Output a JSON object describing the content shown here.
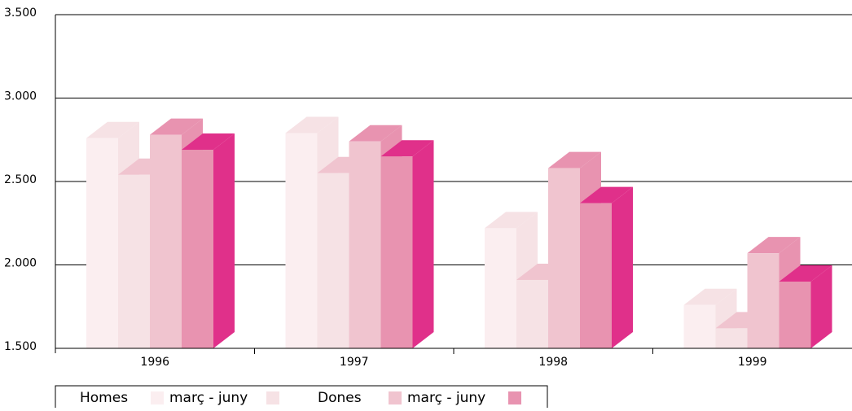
{
  "chart_data": {
    "type": "bar3d",
    "categories": [
      "1996",
      "1997",
      "1998",
      "1999"
    ],
    "series": [
      {
        "name": "Homes",
        "color": "#fbeef0",
        "side_color": "#f6e2e5",
        "values": [
          2760,
          2790,
          2220,
          1760
        ]
      },
      {
        "name": "març - juny",
        "color": "#f6e2e5",
        "side_color": "#f0c4cf",
        "values": [
          2540,
          2550,
          1910,
          1620
        ]
      },
      {
        "name": "Dones",
        "color": "#f0c4cf",
        "side_color": "#e893b0",
        "values": [
          2780,
          2740,
          2580,
          2070
        ]
      },
      {
        "name": "març - juny",
        "color": "#e893b0",
        "side_color": "#e0308a",
        "values": [
          2690,
          2650,
          2370,
          1900
        ]
      }
    ],
    "ylim": [
      1500,
      3500
    ],
    "yticks": [
      {
        "value": 1500,
        "label": "1.500"
      },
      {
        "value": 2000,
        "label": "2.000"
      },
      {
        "value": 2500,
        "label": "2.500"
      },
      {
        "value": 3000,
        "label": "3.000"
      },
      {
        "value": 3500,
        "label": "3.500"
      }
    ],
    "grid": true
  }
}
